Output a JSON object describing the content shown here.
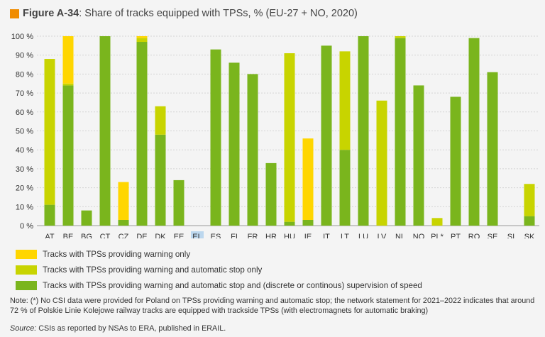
{
  "figure": {
    "label": "Figure A-34",
    "title": "Share of tracks equipped with TPSs, % (EU-27 + NO, 2020)",
    "accent_color": "#f08c00"
  },
  "chart_data": {
    "type": "bar",
    "stacked": true,
    "categories": [
      "AT",
      "BE",
      "BG",
      "CT",
      "CZ",
      "DE",
      "DK",
      "EE",
      "EL",
      "ES",
      "FI",
      "FR",
      "HR",
      "HU",
      "IE",
      "IT",
      "LT",
      "LU",
      "LV",
      "NL",
      "NO",
      "PL*",
      "PT",
      "RO",
      "SE",
      "SI",
      "SK"
    ],
    "highlighted_categories": [
      "EL"
    ],
    "series": [
      {
        "name": "Tracks with TPSs providing warning and automatic stop and (discrete or continous) supervision of speed",
        "color": "#7ab51d",
        "values": [
          11,
          74,
          8,
          100,
          3,
          97,
          48,
          24,
          0,
          93,
          86,
          80,
          33,
          2,
          3,
          95,
          40,
          100,
          0,
          99,
          74,
          0,
          68,
          99,
          81,
          0,
          5
        ]
      },
      {
        "name": "Tracks with TPSs providing warning and automatic stop only",
        "color": "#c8d400",
        "values": [
          77,
          1,
          0,
          0,
          0,
          2,
          15,
          0,
          0,
          0,
          0,
          0,
          0,
          89,
          0,
          0,
          52,
          0,
          66,
          1,
          0,
          4,
          0,
          0,
          0,
          0,
          17
        ]
      },
      {
        "name": "Tracks with TPSs providing warning only",
        "color": "#ffd600",
        "values": [
          0,
          25,
          0,
          0,
          20,
          1,
          0,
          0,
          0,
          0,
          0,
          0,
          0,
          0,
          43,
          0,
          0,
          0,
          0,
          0,
          0,
          0,
          0,
          0,
          0,
          0,
          0
        ]
      }
    ],
    "ylim": [
      0,
      100
    ],
    "yticks": [
      "0 %",
      "10 %",
      "20 %",
      "30 %",
      "40 %",
      "50 %",
      "60 %",
      "70 %",
      "80 %",
      "90 %",
      "100 %"
    ],
    "grid": true,
    "legend_position": "bottom-left"
  },
  "legend": [
    {
      "label": "Tracks with TPSs providing warning only",
      "color": "#ffd600"
    },
    {
      "label": "Tracks with TPSs providing warning and automatic stop only",
      "color": "#c8d400"
    },
    {
      "label": "Tracks with TPSs providing warning and automatic stop and (discrete or continous) supervision of speed",
      "color": "#7ab51d"
    }
  ],
  "note": "Note: (*) No CSI data were provided for Poland on TPSs providing warning and automatic stop; the network statement for 2021–2022 indicates that around 72 % of Polskie Linie Kolejowe railway tracks are equipped with trackside TPSs (with electromagnets for automatic braking)",
  "source": {
    "label": "Source:",
    "text": "CSIs as reported by NSAs to ERA, published in ERAIL."
  }
}
